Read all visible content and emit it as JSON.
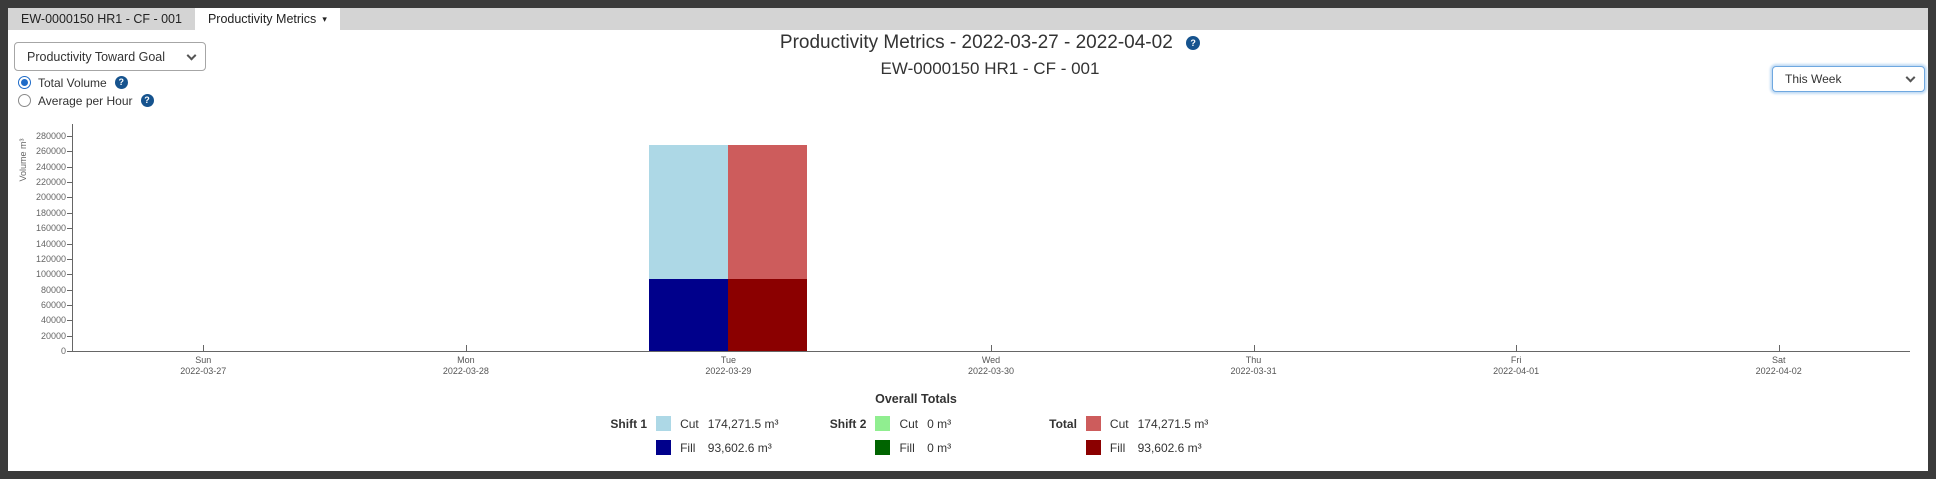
{
  "frame": {
    "color": "#3b3b3b"
  },
  "tab_bar": {
    "tabs": [
      {
        "label": "EW-0000150 HR1 - CF - 001",
        "active": false
      },
      {
        "label": "Productivity Metrics",
        "active": true,
        "caret": "▾"
      }
    ]
  },
  "toolbar": {
    "metric_select": {
      "selected_option": "Productivity Toward Goal"
    },
    "radios": [
      {
        "label": "Total Volume",
        "selected": true
      },
      {
        "label": "Average per Hour",
        "selected": false
      }
    ],
    "range_select": {
      "selected_option": "This Week"
    }
  },
  "header": {
    "title": "Productivity Metrics - 2022-03-27 - 2022-04-02",
    "subtitle": "EW-0000150 HR1 - CF - 001",
    "help_glyph": "?"
  },
  "chart_data": {
    "type": "bar",
    "stacked": true,
    "title": "Productivity Metrics - 2022-03-27 - 2022-04-02",
    "ylabel": "Volume m³",
    "ylim": [
      0,
      280000
    ],
    "ytick_step": 20000,
    "grid": false,
    "categories": [
      {
        "day": "Sun",
        "date": "2022-03-27"
      },
      {
        "day": "Mon",
        "date": "2022-03-28"
      },
      {
        "day": "Tue",
        "date": "2022-03-29"
      },
      {
        "day": "Wed",
        "date": "2022-03-30"
      },
      {
        "day": "Thu",
        "date": "2022-03-31"
      },
      {
        "day": "Fri",
        "date": "2022-04-01"
      },
      {
        "day": "Sat",
        "date": "2022-04-02"
      }
    ],
    "bar_groups": [
      {
        "name": "Shift 1",
        "category_index": 2,
        "segments": [
          {
            "label": "Fill",
            "value": 93602.6,
            "color": "#00008B"
          },
          {
            "label": "Cut",
            "value": 174271.5,
            "color": "#ADD8E6"
          }
        ]
      },
      {
        "name": "Total",
        "category_index": 2,
        "segments": [
          {
            "label": "Fill",
            "value": 93602.6,
            "color": "#8B0000"
          },
          {
            "label": "Cut",
            "value": 174271.5,
            "color": "#CD5C5C"
          }
        ]
      }
    ]
  },
  "legend": {
    "title": "Overall Totals",
    "groups": [
      {
        "name": "Shift 1",
        "entries": [
          {
            "label": "Cut",
            "value": "174,271.5 m³",
            "color": "#ADD8E6"
          },
          {
            "label": "Fill",
            "value": "93,602.6 m³",
            "color": "#00008B"
          }
        ]
      },
      {
        "name": "Shift 2",
        "entries": [
          {
            "label": "Cut",
            "value": "0 m³",
            "color": "#90EE90"
          },
          {
            "label": "Fill",
            "value": "0 m³",
            "color": "#006400"
          }
        ]
      },
      {
        "name": "Total",
        "entries": [
          {
            "label": "Cut",
            "value": "174,271.5 m³",
            "color": "#CD5C5C"
          },
          {
            "label": "Fill",
            "value": "93,602.6 m³",
            "color": "#8B0000"
          }
        ]
      }
    ]
  }
}
